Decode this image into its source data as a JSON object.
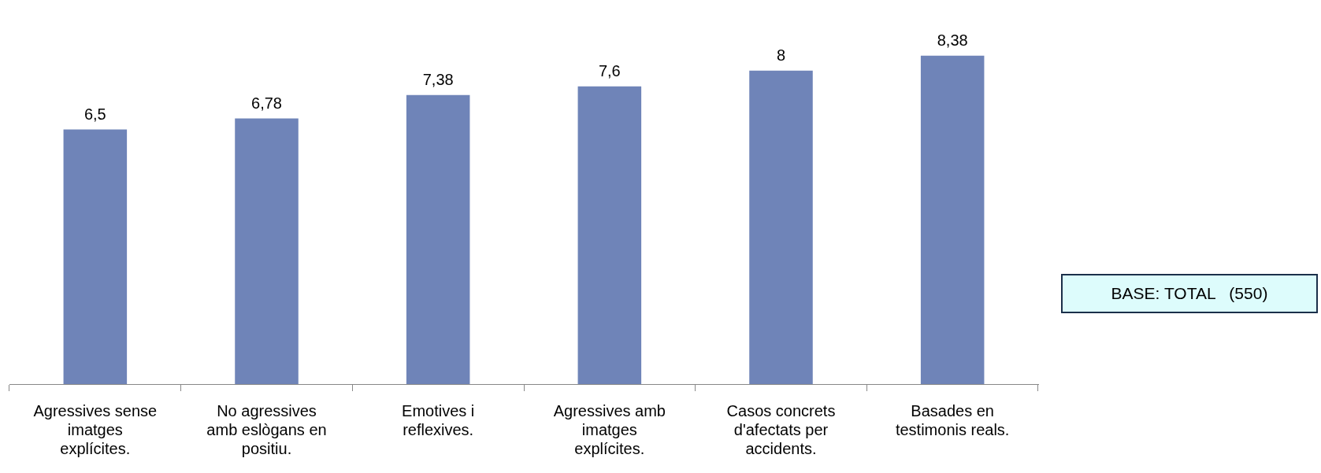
{
  "chart_data": {
    "type": "bar",
    "categories": [
      "Agressives sense imatges explícites.",
      "No agressives amb eslògans en positiu.",
      "Emotives i reflexives.",
      "Agressives amb imatges explícites.",
      "Casos concrets d'afectats per accidents.",
      "Basades en testimonis reals."
    ],
    "values": [
      6.5,
      6.78,
      7.38,
      7.6,
      8,
      8.38
    ],
    "value_labels": [
      "6,5",
      "6,78",
      "7,38",
      "7,6",
      "8",
      "8,38"
    ],
    "color": "#6f84b8",
    "tick_labels": "x",
    "grid": false,
    "legend": false,
    "annotations": [
      "BASE: TOTAL   (550)"
    ]
  }
}
